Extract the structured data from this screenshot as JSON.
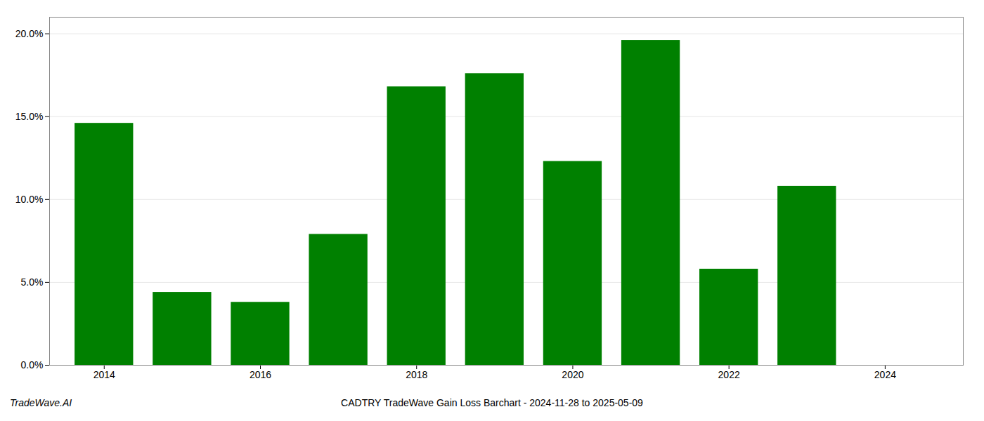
{
  "chart_data": {
    "type": "bar",
    "title": "CADTRY TradeWave Gain Loss Barchart - 2024-11-28 to 2025-05-09",
    "annotations": [
      "TradeWave.AI"
    ],
    "x": [
      2014,
      2015,
      2016,
      2017,
      2018,
      2019,
      2020,
      2021,
      2022,
      2023
    ],
    "values": [
      0.146,
      0.044,
      0.038,
      0.079,
      0.168,
      0.176,
      0.123,
      0.196,
      0.058,
      0.108
    ],
    "color": "#008000",
    "xlim": [
      2013.3,
      2025.0
    ],
    "xticks": [
      2014,
      2016,
      2018,
      2020,
      2022,
      2024
    ],
    "ylim": [
      0,
      0.21
    ],
    "yticks": [
      {
        "value": 0.0,
        "label": "0.0%"
      },
      {
        "value": 0.05,
        "label": "5.0%"
      },
      {
        "value": 0.1,
        "label": "10.0%"
      },
      {
        "value": 0.15,
        "label": "15.0%"
      },
      {
        "value": 0.2,
        "label": "20.0%"
      }
    ],
    "grid": true
  }
}
